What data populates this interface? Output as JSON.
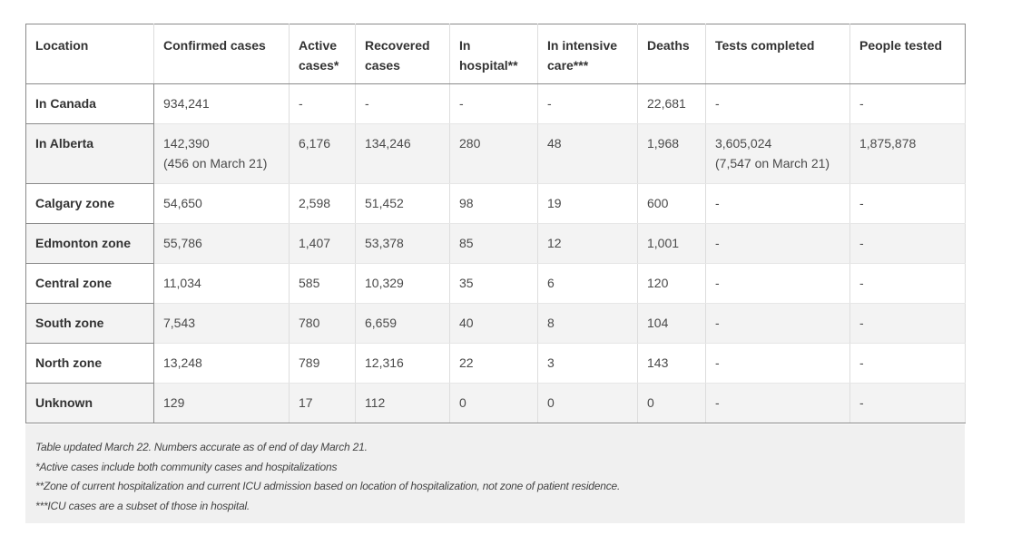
{
  "table": {
    "headers": [
      "Location",
      "Confirmed cases",
      "Active cases*",
      "Recovered cases",
      "In hospital**",
      "In intensive care***",
      "Deaths",
      "Tests completed",
      "People tested"
    ],
    "rows": [
      {
        "location": "In Canada",
        "confirmed": "934,241",
        "confirmed_note": "",
        "active": "-",
        "recovered": "-",
        "hospital": "-",
        "icu": "-",
        "deaths": "22,681",
        "tests": "-",
        "tests_note": "",
        "people": "-"
      },
      {
        "location": "In Alberta",
        "confirmed": "142,390",
        "confirmed_note": "(456 on March 21)",
        "active": "6,176",
        "recovered": "134,246",
        "hospital": "280",
        "icu": "48",
        "deaths": "1,968",
        "tests": "3,605,024",
        "tests_note": "(7,547 on March 21)",
        "people": "1,875,878"
      },
      {
        "location": "Calgary zone",
        "confirmed": "54,650",
        "confirmed_note": "",
        "active": "2,598",
        "recovered": "51,452",
        "hospital": "98",
        "icu": "19",
        "deaths": "600",
        "tests": "-",
        "tests_note": "",
        "people": "-"
      },
      {
        "location": "Edmonton zone",
        "confirmed": "55,786",
        "confirmed_note": "",
        "active": "1,407",
        "recovered": "53,378",
        "hospital": "85",
        "icu": "12",
        "deaths": "1,001",
        "tests": "-",
        "tests_note": "",
        "people": "-"
      },
      {
        "location": "Central zone",
        "confirmed": "11,034",
        "confirmed_note": "",
        "active": "585",
        "recovered": "10,329",
        "hospital": "35",
        "icu": "6",
        "deaths": "120",
        "tests": "-",
        "tests_note": "",
        "people": "-"
      },
      {
        "location": "South zone",
        "confirmed": "7,543",
        "confirmed_note": "",
        "active": "780",
        "recovered": "6,659",
        "hospital": "40",
        "icu": "8",
        "deaths": "104",
        "tests": "-",
        "tests_note": "",
        "people": "-"
      },
      {
        "location": "North zone",
        "confirmed": "13,248",
        "confirmed_note": "",
        "active": "789",
        "recovered": "12,316",
        "hospital": "22",
        "icu": "3",
        "deaths": "143",
        "tests": "-",
        "tests_note": "",
        "people": "-"
      },
      {
        "location": "Unknown",
        "confirmed": "129",
        "confirmed_note": "",
        "active": "17",
        "recovered": "112",
        "hospital": "0",
        "icu": "0",
        "deaths": "0",
        "tests": "-",
        "tests_note": "",
        "people": "-"
      }
    ]
  },
  "notes": [
    "Table updated March 22. Numbers accurate as of end of day March 21.",
    "*Active cases include both community cases and hospitalizations",
    "**Zone of current hospitalization and current ICU admission based on location of hospitalization, not zone of patient residence.",
    "***ICU cases are a subset of those in hospital."
  ]
}
